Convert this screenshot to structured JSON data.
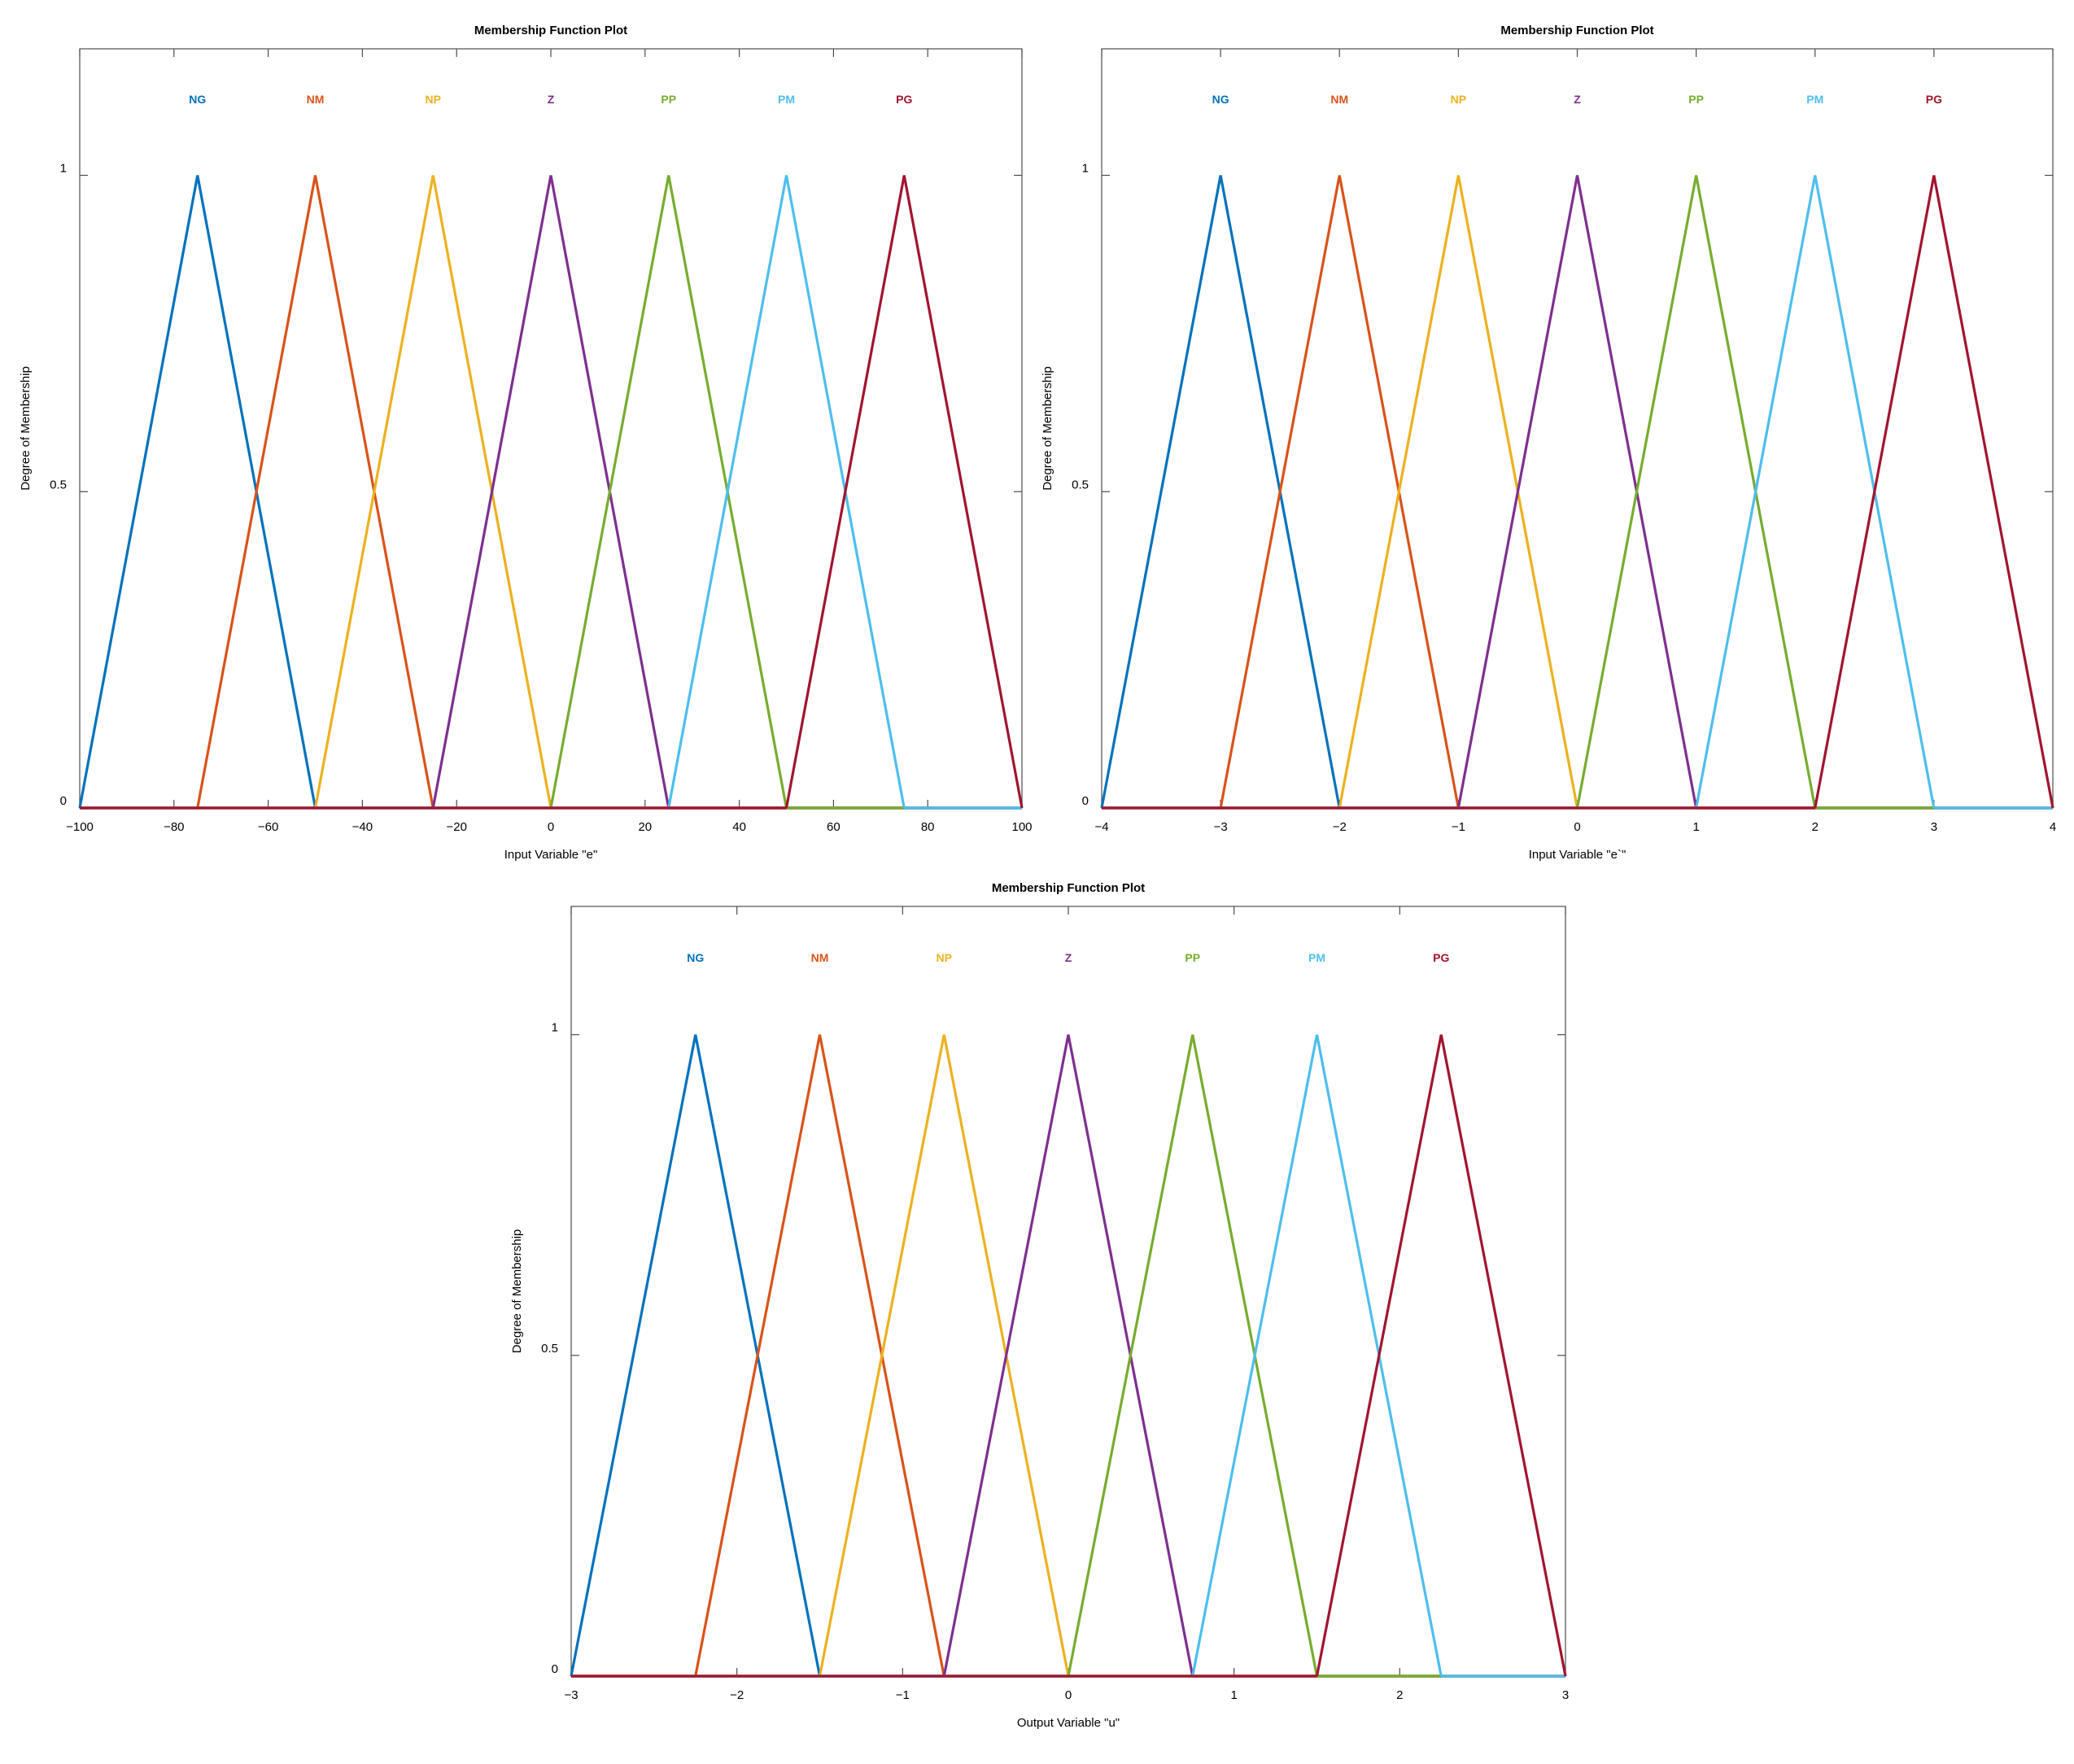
{
  "colors": {
    "NG": "#0072bd",
    "NM": "#d95319",
    "NP": "#edb120",
    "Z": "#7e2f8e",
    "PP": "#77ac30",
    "PM": "#4dbeee",
    "PG": "#a2142f"
  },
  "chart_data": [
    {
      "type": "line",
      "title": "Membership Function Plot",
      "xlabel": "Input Variable \"e\"",
      "ylabel": "Degree of Membership",
      "xlim": [
        -100,
        100
      ],
      "ylim": [
        0,
        1.2
      ],
      "xticks": [
        -100,
        -80,
        -60,
        -40,
        -20,
        0,
        20,
        40,
        60,
        80,
        100
      ],
      "xtick_labels": [
        "−100",
        "−80",
        "−60",
        "−40",
        "−20",
        "0",
        "20",
        "40",
        "60",
        "80",
        "100"
      ],
      "yticks": [
        0,
        0.5,
        1
      ],
      "ytick_labels": [
        "0",
        "0.5",
        "1"
      ],
      "series": [
        {
          "name": "NG",
          "x": [
            -100,
            -75,
            -50
          ],
          "y": [
            0,
            1,
            0
          ]
        },
        {
          "name": "NM",
          "x": [
            -75,
            -50,
            -25
          ],
          "y": [
            0,
            1,
            0
          ]
        },
        {
          "name": "NP",
          "x": [
            -50,
            -25,
            0
          ],
          "y": [
            0,
            1,
            0
          ]
        },
        {
          "name": "Z",
          "x": [
            -25,
            0,
            25
          ],
          "y": [
            0,
            1,
            0
          ]
        },
        {
          "name": "PP",
          "x": [
            0,
            25,
            50
          ],
          "y": [
            0,
            1,
            0
          ]
        },
        {
          "name": "PM",
          "x": [
            25,
            50,
            75
          ],
          "y": [
            0,
            1,
            0
          ]
        },
        {
          "name": "PG",
          "x": [
            50,
            75,
            100
          ],
          "y": [
            0,
            1,
            0
          ]
        }
      ]
    },
    {
      "type": "line",
      "title": "Membership Function Plot",
      "xlabel": "Input Variable \"e`\"",
      "ylabel": "Degree of Membership",
      "xlim": [
        -4,
        4
      ],
      "ylim": [
        0,
        1.2
      ],
      "xticks": [
        -4,
        -3,
        -2,
        -1,
        0,
        1,
        2,
        3,
        4
      ],
      "xtick_labels": [
        "−4",
        "−3",
        "−2",
        "−1",
        "0",
        "1",
        "2",
        "3",
        "4"
      ],
      "yticks": [
        0,
        0.5,
        1
      ],
      "ytick_labels": [
        "0",
        "0.5",
        "1"
      ],
      "series": [
        {
          "name": "NG",
          "x": [
            -4,
            -3,
            -2
          ],
          "y": [
            0,
            1,
            0
          ]
        },
        {
          "name": "NM",
          "x": [
            -3,
            -2,
            -1
          ],
          "y": [
            0,
            1,
            0
          ]
        },
        {
          "name": "NP",
          "x": [
            -2,
            -1,
            0
          ],
          "y": [
            0,
            1,
            0
          ]
        },
        {
          "name": "Z",
          "x": [
            -1,
            0,
            1
          ],
          "y": [
            0,
            1,
            0
          ]
        },
        {
          "name": "PP",
          "x": [
            0,
            1,
            2
          ],
          "y": [
            0,
            1,
            0
          ]
        },
        {
          "name": "PM",
          "x": [
            1,
            2,
            3
          ],
          "y": [
            0,
            1,
            0
          ]
        },
        {
          "name": "PG",
          "x": [
            2,
            3,
            4
          ],
          "y": [
            0,
            1,
            0
          ]
        }
      ]
    },
    {
      "type": "line",
      "title": "Membership Function Plot",
      "xlabel": "Output Variable \"u\"",
      "ylabel": "Degree of Membership",
      "xlim": [
        -3,
        3
      ],
      "ylim": [
        0,
        1.2
      ],
      "xticks": [
        -3,
        -2,
        -1,
        0,
        1,
        2,
        3
      ],
      "xtick_labels": [
        "−3",
        "−2",
        "−1",
        "0",
        "1",
        "2",
        "3"
      ],
      "yticks": [
        0,
        0.5,
        1
      ],
      "ytick_labels": [
        "0",
        "0.5",
        "1"
      ],
      "series": [
        {
          "name": "NG",
          "x": [
            -3,
            -2.25,
            -1.5
          ],
          "y": [
            0,
            1,
            0
          ]
        },
        {
          "name": "NM",
          "x": [
            -2.25,
            -1.5,
            -0.75
          ],
          "y": [
            0,
            1,
            0
          ]
        },
        {
          "name": "NP",
          "x": [
            -1.5,
            -0.75,
            0
          ],
          "y": [
            0,
            1,
            0
          ]
        },
        {
          "name": "Z",
          "x": [
            -0.75,
            0,
            0.75
          ],
          "y": [
            0,
            1,
            0
          ]
        },
        {
          "name": "PP",
          "x": [
            0,
            0.75,
            1.5
          ],
          "y": [
            0,
            1,
            0
          ]
        },
        {
          "name": "PM",
          "x": [
            0.75,
            1.5,
            2.25
          ],
          "y": [
            0,
            1,
            0
          ]
        },
        {
          "name": "PG",
          "x": [
            1.5,
            2.25,
            3
          ],
          "y": [
            0,
            1,
            0
          ]
        }
      ]
    }
  ]
}
